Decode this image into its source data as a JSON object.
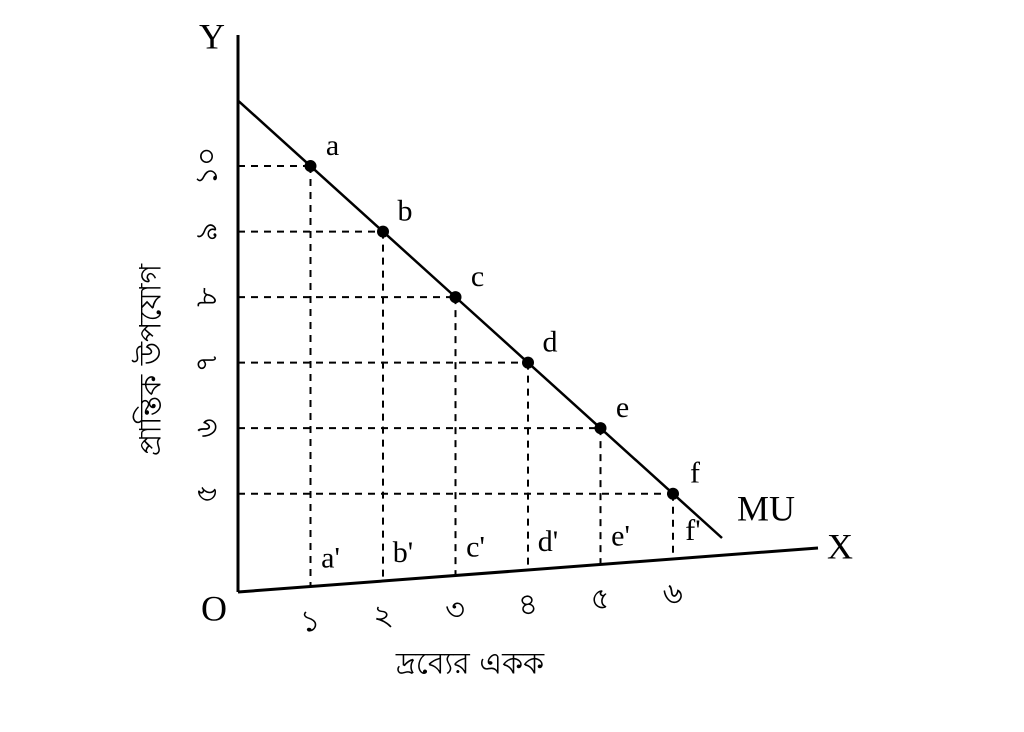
{
  "chart_data": {
    "type": "line",
    "title_y": "Y",
    "title_x": "X",
    "origin_label": "O",
    "line_label": "MU",
    "y_axis_label": "প্রান্তিক উপযোগ",
    "x_axis_label": "দ্রব্যের একক",
    "x": [
      1,
      2,
      3,
      4,
      5,
      6
    ],
    "values": [
      10,
      9,
      8,
      7,
      6,
      5
    ],
    "point_labels": [
      "a",
      "b",
      "c",
      "d",
      "e",
      "f"
    ],
    "foot_labels": [
      "a'",
      "b'",
      "c'",
      "d'",
      "e'",
      "f'"
    ],
    "xlim": [
      0,
      8
    ],
    "ylim": [
      3.5,
      12
    ],
    "xticks": [
      {
        "value": 1,
        "label": "১"
      },
      {
        "value": 2,
        "label": "২"
      },
      {
        "value": 3,
        "label": "৩"
      },
      {
        "value": 4,
        "label": "৪"
      },
      {
        "value": 5,
        "label": "৫"
      },
      {
        "value": 6,
        "label": "৬"
      }
    ],
    "yticks": [
      {
        "value": 10,
        "label": "১০"
      },
      {
        "value": 9,
        "label": "৯"
      },
      {
        "value": 8,
        "label": "৮"
      },
      {
        "value": 7,
        "label": "৭"
      },
      {
        "value": 6,
        "label": "৬"
      },
      {
        "value": 5,
        "label": "৫"
      }
    ],
    "color": "#000000",
    "grid": "dashed"
  }
}
